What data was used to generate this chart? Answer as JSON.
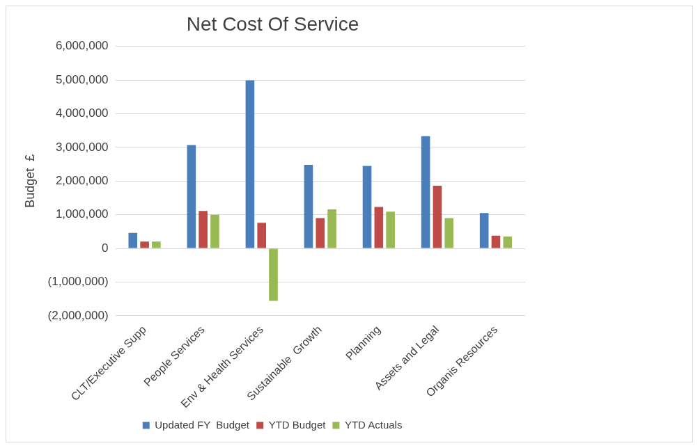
{
  "chart_data": {
    "type": "bar",
    "title": "Net Cost Of Service",
    "ylabel": "Budget  £",
    "categories": [
      "CLT/Executive Supp",
      "People Services",
      "Env & Health Services",
      "Sustainable  Growth",
      "Planning",
      "Assets and Legal",
      "Organis Resources"
    ],
    "series": [
      {
        "name": "Updated FY  Budget",
        "color": "#4a7ebb",
        "values": [
          460000,
          3070000,
          4990000,
          2480000,
          2450000,
          3330000,
          1050000
        ]
      },
      {
        "name": "YTD Budget",
        "color": "#be4b48",
        "values": [
          200000,
          1110000,
          760000,
          900000,
          1230000,
          1860000,
          380000
        ]
      },
      {
        "name": "YTD Actuals",
        "color": "#98b954",
        "values": [
          200000,
          1000000,
          -1560000,
          1160000,
          1090000,
          900000,
          350000
        ]
      }
    ],
    "ylim": [
      -2000000,
      6000000
    ],
    "yticks": [
      {
        "value": -2000000,
        "label": "(2,000,000)"
      },
      {
        "value": -1000000,
        "label": "(1,000,000)"
      },
      {
        "value": 0,
        "label": "0"
      },
      {
        "value": 1000000,
        "label": "1,000,000"
      },
      {
        "value": 2000000,
        "label": "2,000,000"
      },
      {
        "value": 3000000,
        "label": "3,000,000"
      },
      {
        "value": 4000000,
        "label": "4,000,000"
      },
      {
        "value": 5000000,
        "label": "5,000,000"
      },
      {
        "value": 6000000,
        "label": "6,000,000"
      }
    ],
    "grid": "y",
    "legend": "bottom"
  }
}
